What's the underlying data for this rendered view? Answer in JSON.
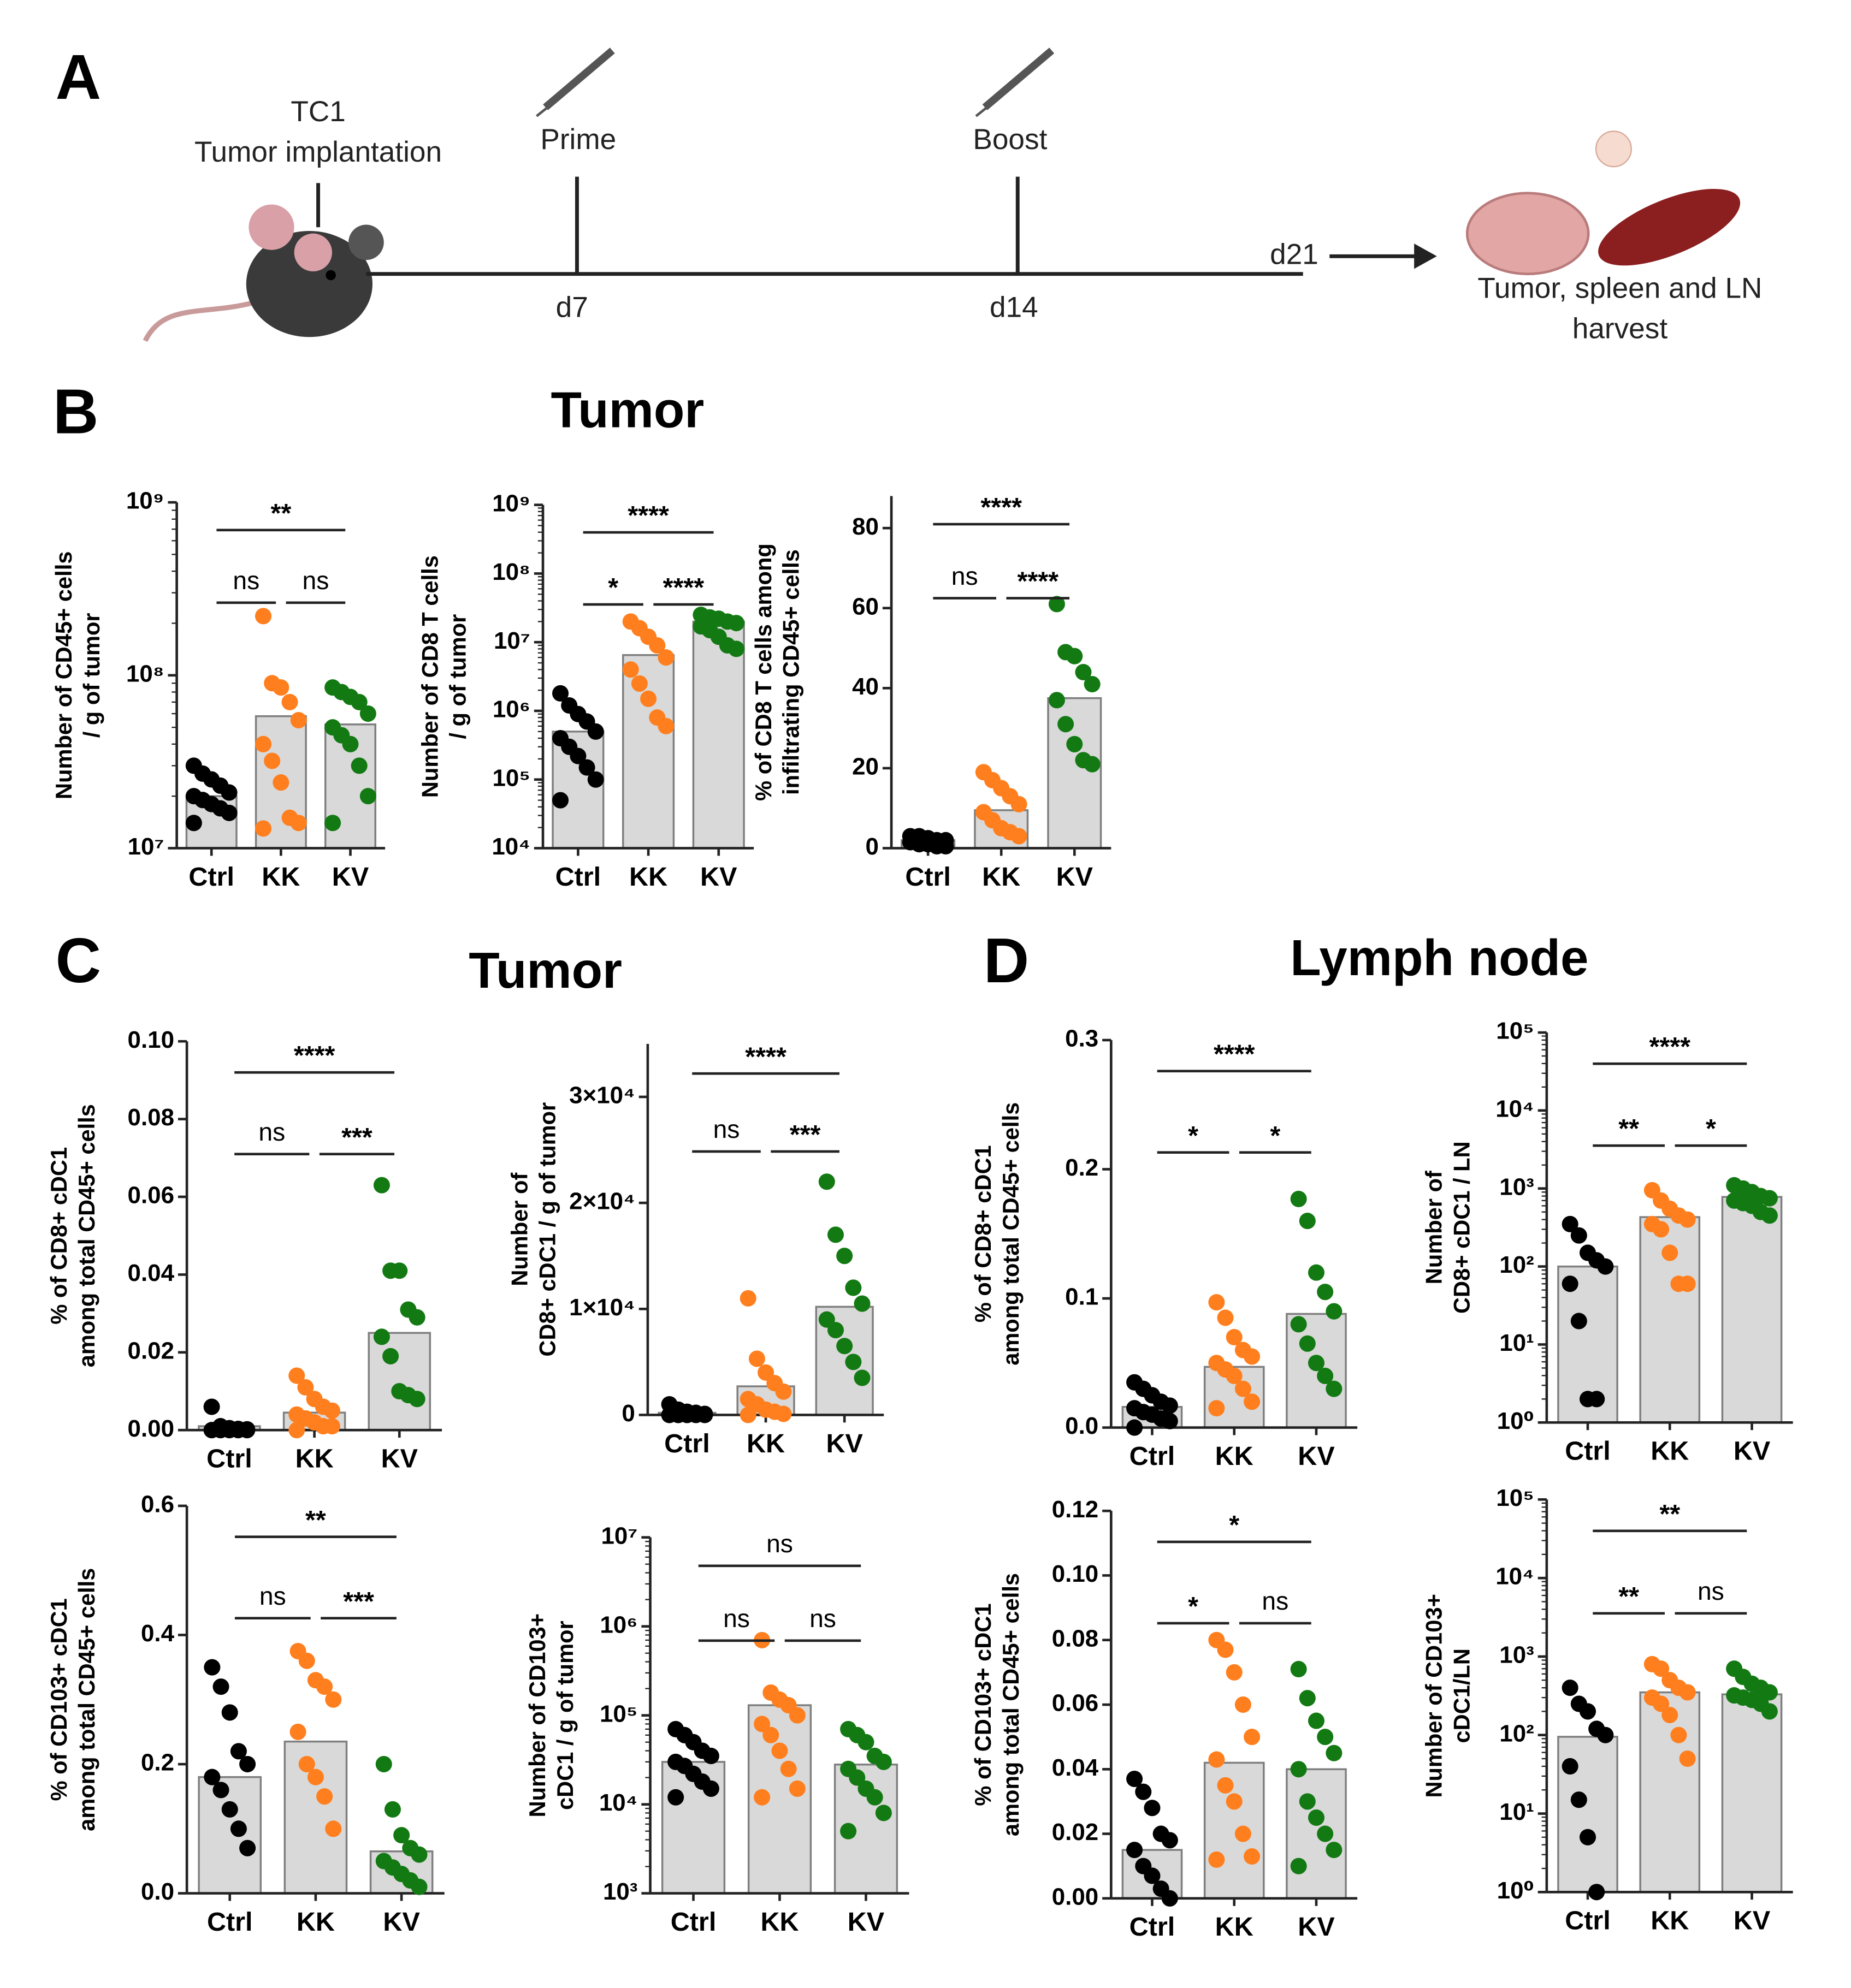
{
  "panel_a": {
    "letter": "A",
    "implant_line1": "TC1",
    "implant_line2": "Tumor implantation",
    "prime": "Prime",
    "boost": "Boost",
    "day_prime": "d7",
    "day_boost": "d14",
    "day_end": "d21",
    "harvest_line1": "Tumor, spleen and LN",
    "harvest_line2": "harvest"
  },
  "panels": {
    "b_letter": "B",
    "b_title": "Tumor",
    "c_letter": "C",
    "c_title": "Tumor",
    "d_letter": "D",
    "d_title": "Lymph node"
  },
  "chart_data": [
    {
      "type": "bar",
      "y_label": [
        "Number of CD45+ cells",
        "/ g of tumor"
      ],
      "categories": [
        "Ctrl",
        "KK",
        "KV"
      ],
      "colors": [
        "#000000",
        "#ff7f1e",
        "#137a13"
      ],
      "log": true,
      "ylim": [
        10000000.0,
        1000000000.0
      ],
      "yticks": [
        {
          "value": 10000000.0,
          "label": "10⁷"
        },
        {
          "value": 100000000.0,
          "label": "10⁸"
        },
        {
          "value": 1000000000.0,
          "label": "10⁹"
        }
      ],
      "values": [
        20000000.0,
        58000000.0,
        52000000.0
      ],
      "points": [
        [
          30000000.0,
          27000000.0,
          25000000.0,
          23000000.0,
          21000000.0,
          20000000.0,
          19000000.0,
          18000000.0,
          17000000.0,
          16000000.0,
          14000000.0
        ],
        [
          220000000.0,
          90000000.0,
          85000000.0,
          70000000.0,
          55000000.0,
          40000000.0,
          32000000.0,
          24000000.0,
          15000000.0,
          14000000.0,
          13000000.0
        ],
        [
          85000000.0,
          80000000.0,
          75000000.0,
          70000000.0,
          60000000.0,
          50000000.0,
          45000000.0,
          40000000.0,
          30000000.0,
          20000000.0,
          14000000.0
        ]
      ],
      "comparisons": [
        {
          "pair": [
            "Ctrl",
            "KV"
          ],
          "label": "**"
        },
        {
          "pair": [
            "Ctrl",
            "KK"
          ],
          "label": "ns"
        },
        {
          "pair": [
            "KK",
            "KV"
          ],
          "label": "ns"
        }
      ]
    },
    {
      "type": "bar",
      "y_label": [
        "Number of CD8 T cells",
        "/ g of tumor"
      ],
      "categories": [
        "Ctrl",
        "KK",
        "KV"
      ],
      "colors": [
        "#000000",
        "#ff7f1e",
        "#137a13"
      ],
      "log": true,
      "ylim": [
        10000.0,
        1000000000.0
      ],
      "yticks": [
        {
          "value": 10000.0,
          "label": "10⁴"
        },
        {
          "value": 100000.0,
          "label": "10⁵"
        },
        {
          "value": 1000000.0,
          "label": "10⁶"
        },
        {
          "value": 10000000.0,
          "label": "10⁷"
        },
        {
          "value": 100000000.0,
          "label": "10⁸"
        },
        {
          "value": 1000000000.0,
          "label": "10⁹"
        }
      ],
      "values": [
        500000.0,
        6500000.0,
        20000000.0
      ],
      "points": [
        [
          1800000.0,
          1200000.0,
          900000.0,
          700000.0,
          500000.0,
          400000.0,
          300000.0,
          220000.0,
          150000.0,
          100000.0,
          50000.0
        ],
        [
          20000000.0,
          16000000.0,
          12000000.0,
          9000000.0,
          6000000.0,
          4000000.0,
          2500000.0,
          1500000.0,
          800000.0,
          600000.0
        ],
        [
          25000000.0,
          23000000.0,
          22000000.0,
          20000000.0,
          19000000.0,
          17000000.0,
          15000000.0,
          12000000.0,
          9000000.0,
          8000000.0
        ]
      ],
      "comparisons": [
        {
          "pair": [
            "Ctrl",
            "KV"
          ],
          "label": "****"
        },
        {
          "pair": [
            "Ctrl",
            "KK"
          ],
          "label": "*"
        },
        {
          "pair": [
            "KK",
            "KV"
          ],
          "label": "****"
        }
      ]
    },
    {
      "type": "bar",
      "y_label": [
        "% of CD8 T cells among",
        "infiltrating CD45+ cells"
      ],
      "categories": [
        "Ctrl",
        "KK",
        "KV"
      ],
      "colors": [
        "#000000",
        "#ff7f1e",
        "#137a13"
      ],
      "log": false,
      "ylim": [
        0,
        88
      ],
      "yticks": [
        0,
        20,
        40,
        60,
        80
      ],
      "values": [
        2,
        9.5,
        37.5
      ],
      "points": [
        [
          3,
          3,
          2.5,
          2,
          2,
          1.5,
          1,
          1,
          0.5,
          0.5
        ],
        [
          19,
          17,
          15,
          13,
          11,
          9,
          7,
          5,
          4,
          3
        ],
        [
          61,
          49,
          48,
          44,
          41,
          37,
          31,
          26,
          22,
          21
        ]
      ],
      "comparisons": [
        {
          "pair": [
            "Ctrl",
            "KV"
          ],
          "label": "****"
        },
        {
          "pair": [
            "Ctrl",
            "KK"
          ],
          "label": "ns"
        },
        {
          "pair": [
            "KK",
            "KV"
          ],
          "label": "****"
        }
      ]
    },
    {
      "type": "bar",
      "y_label": [
        "% of CD8+ cDC1",
        "among total CD45+ cells"
      ],
      "categories": [
        "Ctrl",
        "KK",
        "KV"
      ],
      "colors": [
        "#000000",
        "#ff7f1e",
        "#137a13"
      ],
      "log": false,
      "ylim": [
        0,
        0.1
      ],
      "yticks": [
        {
          "value": 0,
          "label": "0.00"
        },
        0.02,
        0.04,
        0.06,
        0.08,
        {
          "value": 0.1,
          "label": "0.10"
        }
      ],
      "values": [
        0.001,
        0.0045,
        0.025
      ],
      "points": [
        [
          0.006,
          0.001,
          0.0005,
          0.0003,
          0.0002,
          0,
          0,
          0,
          0,
          0
        ],
        [
          0.014,
          0.011,
          0.008,
          0.006,
          0.005,
          0.004,
          0.003,
          0.002,
          0.001,
          0.001,
          0
        ],
        [
          0.063,
          0.041,
          0.041,
          0.031,
          0.029,
          0.024,
          0.019,
          0.01,
          0.009,
          0.008
        ]
      ],
      "comparisons": [
        {
          "pair": [
            "Ctrl",
            "KV"
          ],
          "label": "****"
        },
        {
          "pair": [
            "Ctrl",
            "KK"
          ],
          "label": "ns"
        },
        {
          "pair": [
            "KK",
            "KV"
          ],
          "label": "***"
        }
      ]
    },
    {
      "type": "bar",
      "y_label": [
        "Number of",
        "CD8+ cDC1 / g of tumor"
      ],
      "categories": [
        "Ctrl",
        "KK",
        "KV"
      ],
      "colors": [
        "#000000",
        "#ff7f1e",
        "#137a13"
      ],
      "log": false,
      "ylim": [
        0,
        35000
      ],
      "yticks": [
        0,
        {
          "value": 10000,
          "label": "1×10⁴"
        },
        {
          "value": 20000,
          "label": "2×10⁴"
        },
        {
          "value": 30000,
          "label": "3×10⁴"
        }
      ],
      "values": [
        200,
        2700,
        10200
      ],
      "points": [
        [
          1000,
          500,
          300,
          200,
          100,
          0,
          0,
          0,
          0,
          0
        ],
        [
          11000,
          5300,
          4000,
          3000,
          2200,
          1500,
          1000,
          500,
          300,
          100,
          0
        ],
        [
          22000,
          17000,
          15000,
          12000,
          10500,
          9000,
          8000,
          6500,
          5000,
          3500
        ]
      ],
      "comparisons": [
        {
          "pair": [
            "Ctrl",
            "KV"
          ],
          "label": "****"
        },
        {
          "pair": [
            "Ctrl",
            "KK"
          ],
          "label": "ns"
        },
        {
          "pair": [
            "KK",
            "KV"
          ],
          "label": "***"
        }
      ]
    },
    {
      "type": "bar",
      "y_label": [
        "% of CD103+ cDC1",
        "among total CD45+ cells"
      ],
      "categories": [
        "Ctrl",
        "KK",
        "KV"
      ],
      "colors": [
        "#000000",
        "#ff7f1e",
        "#137a13"
      ],
      "log": false,
      "ylim": [
        0,
        0.6
      ],
      "yticks": [
        {
          "value": 0,
          "label": "0.0"
        },
        0.2,
        0.4,
        0.6
      ],
      "values": [
        0.18,
        0.235,
        0.065
      ],
      "points": [
        [
          0.35,
          0.32,
          0.28,
          0.22,
          0.2,
          0.18,
          0.16,
          0.13,
          0.1,
          0.07
        ],
        [
          0.375,
          0.36,
          0.33,
          0.32,
          0.3,
          0.25,
          0.2,
          0.18,
          0.15,
          0.1
        ],
        [
          0.2,
          0.13,
          0.09,
          0.07,
          0.06,
          0.05,
          0.04,
          0.03,
          0.02,
          0.01
        ]
      ],
      "comparisons": [
        {
          "pair": [
            "Ctrl",
            "KV"
          ],
          "label": "**"
        },
        {
          "pair": [
            "Ctrl",
            "KK"
          ],
          "label": "ns"
        },
        {
          "pair": [
            "KK",
            "KV"
          ],
          "label": "***"
        }
      ]
    },
    {
      "type": "bar",
      "y_label": [
        "Number of CD103+",
        "cDC1 / g of tumor"
      ],
      "categories": [
        "Ctrl",
        "KK",
        "KV"
      ],
      "colors": [
        "#000000",
        "#ff7f1e",
        "#137a13"
      ],
      "log": true,
      "ylim": [
        1000.0,
        10000000.0
      ],
      "yticks": [
        {
          "value": 1000.0,
          "label": "10³"
        },
        {
          "value": 10000.0,
          "label": "10⁴"
        },
        {
          "value": 100000.0,
          "label": "10⁵"
        },
        {
          "value": 1000000.0,
          "label": "10⁶"
        },
        {
          "value": 10000000.0,
          "label": "10⁷"
        }
      ],
      "values": [
        30000.0,
        130000.0,
        28000.0
      ],
      "points": [
        [
          70000.0,
          60000.0,
          50000.0,
          40000.0,
          35000.0,
          30000.0,
          27000.0,
          22000.0,
          18000.0,
          15000.0,
          12000.0
        ],
        [
          700000.0,
          180000.0,
          150000.0,
          130000.0,
          100000.0,
          80000.0,
          60000.0,
          40000.0,
          25000.0,
          15000.0,
          12000.0
        ],
        [
          70000.0,
          60000.0,
          50000.0,
          35000.0,
          30000.0,
          25000.0,
          20000.0,
          15000.0,
          12000.0,
          8000.0,
          5000.0
        ]
      ],
      "comparisons": [
        {
          "pair": [
            "Ctrl",
            "KV"
          ],
          "label": "ns"
        },
        {
          "pair": [
            "Ctrl",
            "KK"
          ],
          "label": "ns"
        },
        {
          "pair": [
            "KK",
            "KV"
          ],
          "label": "ns"
        }
      ]
    },
    {
      "type": "bar",
      "y_label": [
        "% of CD8+ cDC1",
        "among total CD45+ cells"
      ],
      "categories": [
        "Ctrl",
        "KK",
        "KV"
      ],
      "colors": [
        "#000000",
        "#ff7f1e",
        "#137a13"
      ],
      "log": false,
      "ylim": [
        0,
        0.3
      ],
      "yticks": [
        {
          "value": 0,
          "label": "0.0"
        },
        0.1,
        0.2,
        0.3
      ],
      "values": [
        0.016,
        0.047,
        0.088
      ],
      "points": [
        [
          0.035,
          0.03,
          0.025,
          0.02,
          0.017,
          0.015,
          0.012,
          0.01,
          0.007,
          0.005,
          0
        ],
        [
          0.097,
          0.085,
          0.07,
          0.06,
          0.055,
          0.05,
          0.045,
          0.04,
          0.03,
          0.02,
          0.015
        ],
        [
          0.177,
          0.16,
          0.12,
          0.105,
          0.09,
          0.08,
          0.065,
          0.05,
          0.04,
          0.03
        ]
      ],
      "comparisons": [
        {
          "pair": [
            "Ctrl",
            "KV"
          ],
          "label": "****"
        },
        {
          "pair": [
            "Ctrl",
            "KK"
          ],
          "label": "*"
        },
        {
          "pair": [
            "KK",
            "KV"
          ],
          "label": "*"
        }
      ]
    },
    {
      "type": "bar",
      "y_label": [
        "Number of",
        "CD8+ cDC1 / LN"
      ],
      "categories": [
        "Ctrl",
        "KK",
        "KV"
      ],
      "colors": [
        "#000000",
        "#ff7f1e",
        "#137a13"
      ],
      "log": true,
      "ylim": [
        1,
        100000.0
      ],
      "yticks": [
        {
          "value": 1,
          "label": "10⁰"
        },
        {
          "value": 10,
          "label": "10¹"
        },
        {
          "value": 100,
          "label": "10²"
        },
        {
          "value": 1000,
          "label": "10³"
        },
        {
          "value": 10000.0,
          "label": "10⁴"
        },
        {
          "value": 100000.0,
          "label": "10⁵"
        }
      ],
      "values": [
        100,
        430,
        780
      ],
      "points": [
        [
          350,
          250,
          150,
          120,
          100,
          60,
          20,
          2,
          2
        ],
        [
          950,
          700,
          550,
          450,
          400,
          350,
          300,
          150,
          60,
          60
        ],
        [
          1100,
          1000,
          900,
          800,
          750,
          700,
          650,
          600,
          500,
          450
        ]
      ],
      "comparisons": [
        {
          "pair": [
            "Ctrl",
            "KV"
          ],
          "label": "****"
        },
        {
          "pair": [
            "Ctrl",
            "KK"
          ],
          "label": "**"
        },
        {
          "pair": [
            "KK",
            "KV"
          ],
          "label": "*"
        }
      ]
    },
    {
      "type": "bar",
      "y_label": [
        "% of CD103+ cDC1",
        "among total CD45+ cells"
      ],
      "categories": [
        "Ctrl",
        "KK",
        "KV"
      ],
      "colors": [
        "#000000",
        "#ff7f1e",
        "#137a13"
      ],
      "log": false,
      "ylim": [
        0,
        0.12
      ],
      "yticks": [
        {
          "value": 0,
          "label": "0.00"
        },
        0.02,
        0.04,
        0.06,
        0.08,
        {
          "value": 0.1,
          "label": "0.10"
        },
        0.12
      ],
      "values": [
        0.015,
        0.042,
        0.04
      ],
      "points": [
        [
          0.037,
          0.033,
          0.028,
          0.02,
          0.018,
          0.015,
          0.01,
          0.007,
          0.003,
          0
        ],
        [
          0.08,
          0.077,
          0.07,
          0.06,
          0.05,
          0.043,
          0.035,
          0.03,
          0.02,
          0.013,
          0.012
        ],
        [
          0.071,
          0.062,
          0.055,
          0.05,
          0.045,
          0.04,
          0.03,
          0.025,
          0.02,
          0.015,
          0.01
        ]
      ],
      "comparisons": [
        {
          "pair": [
            "Ctrl",
            "KV"
          ],
          "label": "*"
        },
        {
          "pair": [
            "Ctrl",
            "KK"
          ],
          "label": "*"
        },
        {
          "pair": [
            "KK",
            "KV"
          ],
          "label": "ns"
        }
      ]
    },
    {
      "type": "bar",
      "y_label": [
        "Number of  CD103+",
        "cDC1/LN"
      ],
      "categories": [
        "Ctrl",
        "KK",
        "KV"
      ],
      "colors": [
        "#000000",
        "#ff7f1e",
        "#137a13"
      ],
      "log": true,
      "ylim": [
        1,
        100000.0
      ],
      "yticks": [
        {
          "value": 1,
          "label": "10⁰"
        },
        {
          "value": 10,
          "label": "10¹"
        },
        {
          "value": 100,
          "label": "10²"
        },
        {
          "value": 1000,
          "label": "10³"
        },
        {
          "value": 10000.0,
          "label": "10⁴"
        },
        {
          "value": 100000.0,
          "label": "10⁵"
        }
      ],
      "values": [
        95,
        350,
        330
      ],
      "points": [
        [
          400,
          250,
          200,
          120,
          100,
          40,
          15,
          5,
          1
        ],
        [
          800,
          700,
          500,
          400,
          350,
          300,
          250,
          180,
          100,
          50
        ],
        [
          700,
          550,
          450,
          400,
          350,
          320,
          300,
          280,
          250,
          200
        ]
      ],
      "comparisons": [
        {
          "pair": [
            "Ctrl",
            "KV"
          ],
          "label": "**"
        },
        {
          "pair": [
            "Ctrl",
            "KK"
          ],
          "label": "**"
        },
        {
          "pair": [
            "KK",
            "KV"
          ],
          "label": "ns"
        }
      ]
    }
  ]
}
